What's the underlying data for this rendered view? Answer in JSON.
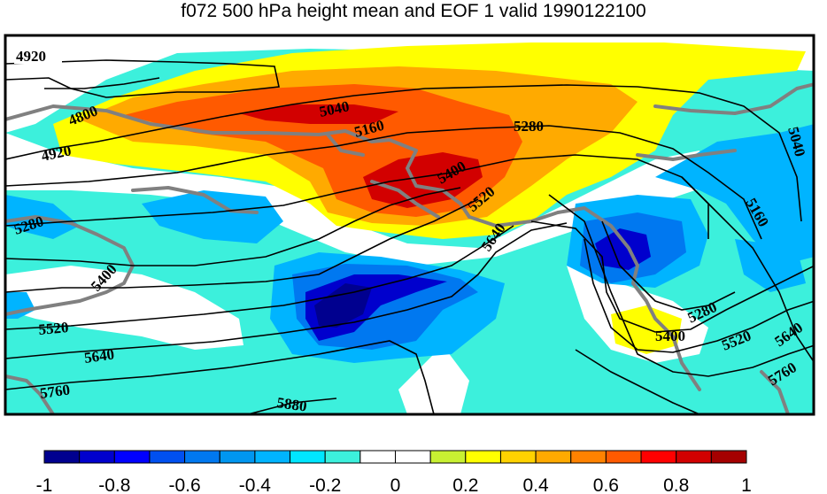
{
  "title": "f072 500 hPa height mean and EOF 1 valid 1990122100",
  "chart_data": {
    "type": "heatmap",
    "title": "f072 500 hPa height mean and EOF 1 valid 1990122100",
    "colorbar": {
      "min": -1,
      "max": 1,
      "tick_labels": [
        "-1",
        "-0.8",
        "-0.6",
        "-0.4",
        "-0.2",
        "0",
        "0.2",
        "0.4",
        "0.6",
        "0.8",
        "1"
      ],
      "colors": [
        "#00008f",
        "#0000cd",
        "#0000ff",
        "#0050f0",
        "#0078f0",
        "#0096f0",
        "#00b4ff",
        "#00e6ff",
        "#3cf0dc",
        "#ffffff",
        "#ffffff",
        "#c8f032",
        "#ffff00",
        "#ffd200",
        "#ffaa00",
        "#ff8200",
        "#ff5a00",
        "#ff0000",
        "#d20000",
        "#a50000"
      ]
    },
    "contour_labels": [
      "4920",
      "4800",
      "4920",
      "5040",
      "5160",
      "5280",
      "5400",
      "5520",
      "5640",
      "5280",
      "5400",
      "5520",
      "5640",
      "5760",
      "5880",
      "5040",
      "5160",
      "5280",
      "5400",
      "5520",
      "5640",
      "5760"
    ]
  }
}
